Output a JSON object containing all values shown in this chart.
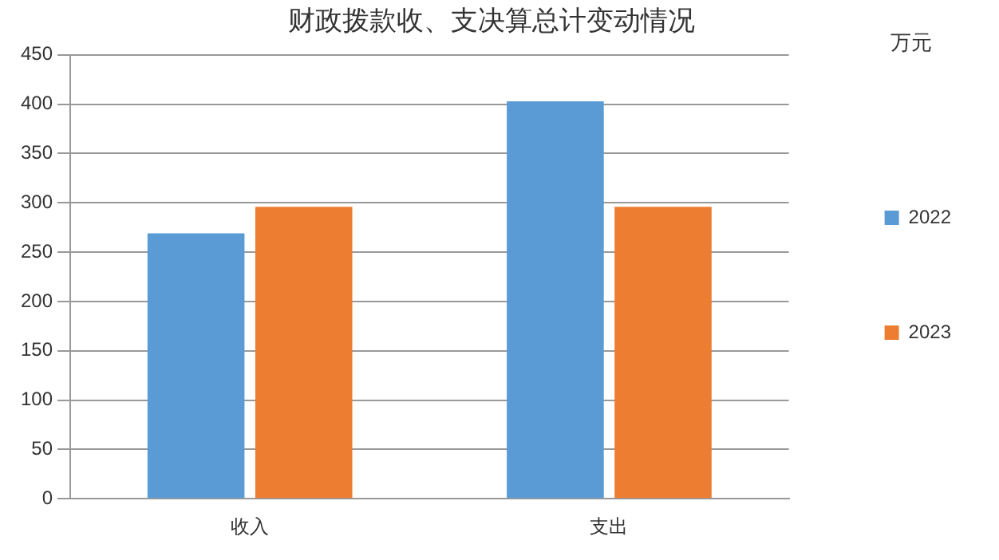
{
  "chart_data": {
    "type": "bar",
    "title": "财政拨款收、支决算总计变动情况",
    "ylabel": "万元",
    "categories": [
      "收入",
      "支出"
    ],
    "series": [
      {
        "name": "2022",
        "color": "#5b9bd5",
        "values": [
          269,
          403
        ]
      },
      {
        "name": "2023",
        "color": "#ed7d31",
        "values": [
          296,
          296
        ]
      }
    ],
    "ylim": [
      0,
      450
    ],
    "yticks": [
      0,
      50,
      100,
      150,
      200,
      250,
      300,
      350,
      400,
      450
    ],
    "grid": "y",
    "legend": "right"
  }
}
